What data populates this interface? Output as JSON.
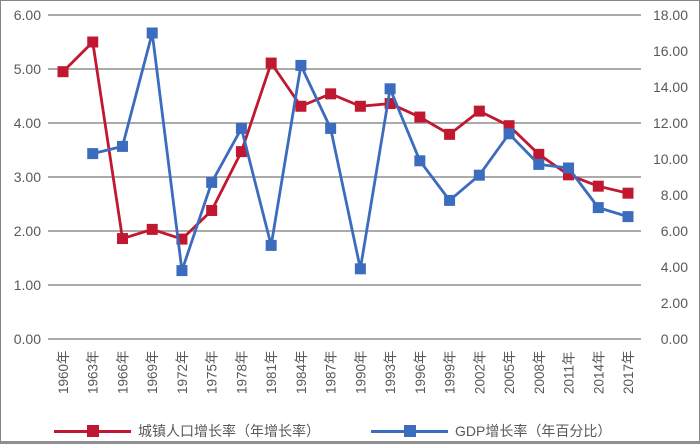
{
  "chart_data": {
    "type": "line",
    "title": "",
    "xlabel": "",
    "ylabel_left": "",
    "ylabel_right": "",
    "grid": true,
    "legend_position": "bottom",
    "categories": [
      "1960年",
      "1963年",
      "1966年",
      "1969年",
      "1972年",
      "1975年",
      "1978年",
      "1981年",
      "1984年",
      "1987年",
      "1990年",
      "1993年",
      "1996年",
      "1999年",
      "2002年",
      "2005年",
      "2008年",
      "2011年",
      "2014年",
      "2017年"
    ],
    "series": [
      {
        "name": "城镇人口增长率（年增长率）",
        "axis": "left",
        "marker": "square",
        "color": "#c01830",
        "values": [
          4.95,
          5.5,
          1.86,
          2.03,
          1.85,
          2.38,
          3.47,
          5.11,
          4.31,
          4.54,
          4.31,
          4.36,
          4.11,
          3.79,
          4.22,
          3.95,
          3.42,
          3.04,
          2.83,
          2.7
        ]
      },
      {
        "name": "GDP增长率（年百分比）",
        "axis": "right",
        "marker": "square",
        "color": "#3b6cbe",
        "values": [
          null,
          10.3,
          10.7,
          17.0,
          3.8,
          8.7,
          11.7,
          5.2,
          15.2,
          11.7,
          3.9,
          13.9,
          9.9,
          7.7,
          9.1,
          11.4,
          9.7,
          9.5,
          7.3,
          6.8
        ]
      }
    ],
    "left_axis": {
      "min": 0,
      "max": 6,
      "tick_labels": [
        "6.00",
        "5.00",
        "4.00",
        "3.00",
        "2.00",
        "1.00",
        "0.00"
      ]
    },
    "right_axis": {
      "min": 0,
      "max": 18,
      "tick_labels": [
        "18.00",
        "16.00",
        "14.00",
        "12.00",
        "10.00",
        "8.00",
        "6.00",
        "4.00",
        "2.00",
        "0.00"
      ]
    }
  },
  "colors": {
    "gridline": "#8f8f8f",
    "axis_text": "#595959",
    "frame_border": "#858585",
    "series_urban": "#c01830",
    "series_gdp": "#3b6cbe"
  }
}
